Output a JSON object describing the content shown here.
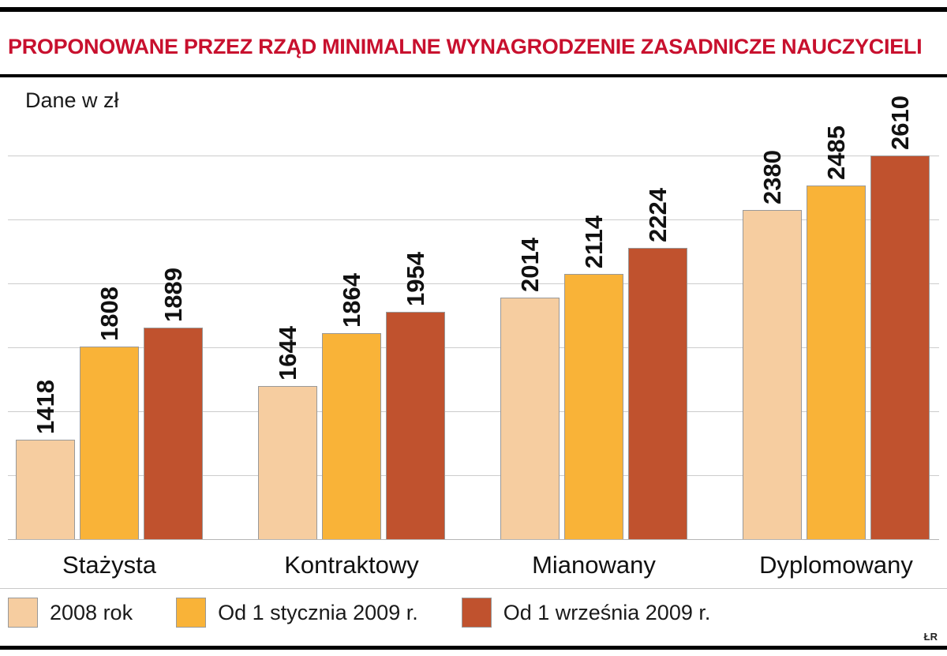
{
  "page": {
    "credit": "ŁR"
  },
  "chart_data": {
    "type": "bar",
    "title": "PROPONOWANE PRZEZ RZĄD MINIMALNE WYNAGRODZENIE ZASADNICZE NAUCZYCIELI",
    "units_label": "Dane w zł",
    "categories": [
      "Stażysta",
      "Kontraktowy",
      "Mianowany",
      "Dyplomowany"
    ],
    "series": [
      {
        "name": "2008 rok",
        "color": "#f6cda0",
        "values": [
          1418,
          1644,
          2014,
          2380
        ]
      },
      {
        "name": "Od 1 stycznia 2009 r.",
        "color": "#f9b338",
        "values": [
          1808,
          1864,
          2114,
          2485
        ]
      },
      {
        "name": "Od 1 września 2009 r.",
        "color": "#c0522e",
        "values": [
          1889,
          1954,
          2224,
          2610
        ]
      }
    ],
    "ylim": [
      1000,
      2610
    ],
    "grid": true,
    "gridline_count": 7,
    "legend_position": "bottom",
    "value_labels": "rotated-90",
    "colors": {
      "title": "#c8102e",
      "gridline": "#cccccc",
      "bar_border": "#999999",
      "text": "#111111"
    }
  }
}
